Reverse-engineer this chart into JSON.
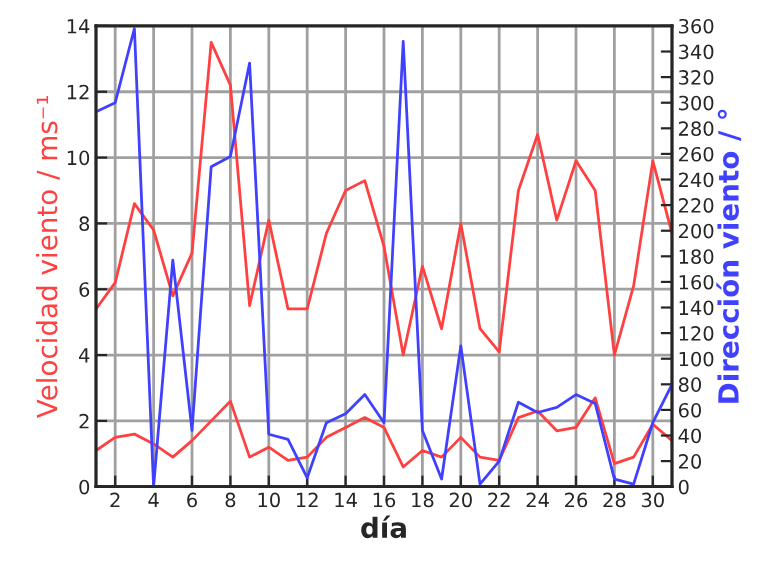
{
  "chart_data": {
    "type": "line",
    "xlabel": "día",
    "ylabel": "Velocidad viento / ms⁻¹",
    "y2label": "Dirección viento / °",
    "x": [
      1,
      2,
      3,
      4,
      5,
      6,
      7,
      8,
      9,
      10,
      11,
      12,
      13,
      14,
      15,
      16,
      17,
      18,
      19,
      20,
      21,
      22,
      23,
      24,
      25,
      26,
      27,
      28,
      29,
      30,
      31
    ],
    "series": [
      {
        "color": "#ff4040",
        "values": [
          5.4,
          6.2,
          8.6,
          7.8,
          5.8,
          7.1,
          13.5,
          12.2,
          5.5,
          8.1,
          5.4,
          5.4,
          7.7,
          9.0,
          9.3,
          7.3,
          4.0,
          6.7,
          4.8,
          8.0,
          4.8,
          4.1,
          9.0,
          10.7,
          8.1,
          9.9,
          9.0,
          4.0,
          6.1,
          9.9,
          7.7
        ]
      },
      {
        "color": "#ff4040",
        "values": [
          1.1,
          1.5,
          1.6,
          1.3,
          0.9,
          1.4,
          2.0,
          2.6,
          0.9,
          1.2,
          0.8,
          0.9,
          1.5,
          1.8,
          2.1,
          1.8,
          0.6,
          1.1,
          0.9,
          1.5,
          0.9,
          0.8,
          2.1,
          2.3,
          1.7,
          1.8,
          2.7,
          0.7,
          0.9,
          1.9,
          1.4
        ]
      },
      {
        "color": "#4040ff",
        "axis": "y2",
        "values": [
          293,
          300,
          358,
          0,
          177,
          44,
          250,
          258,
          331,
          41,
          37,
          7,
          50,
          57,
          72,
          50,
          348,
          44,
          6,
          110,
          2,
          20,
          66,
          58,
          62,
          72,
          65,
          6,
          2,
          50,
          80
        ]
      }
    ],
    "xlim": [
      1,
      31
    ],
    "xticks": [
      2,
      4,
      6,
      8,
      10,
      12,
      14,
      16,
      18,
      20,
      22,
      24,
      26,
      28,
      30
    ],
    "ylim": [
      0,
      14
    ],
    "yticks": [
      0,
      2,
      4,
      6,
      8,
      10,
      12,
      14
    ],
    "y2lim": [
      0,
      360
    ],
    "y2ticks": [
      0,
      20,
      40,
      60,
      80,
      100,
      120,
      140,
      160,
      180,
      200,
      220,
      240,
      260,
      280,
      300,
      320,
      340,
      360
    ],
    "grid": true
  }
}
